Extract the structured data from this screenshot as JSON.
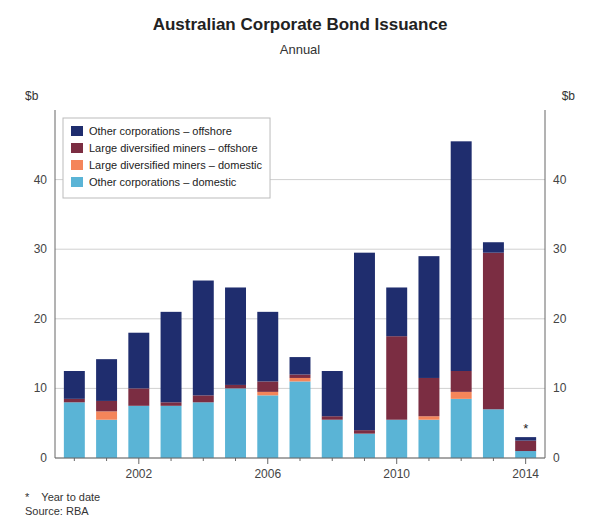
{
  "chart_data": {
    "type": "bar",
    "stacked": true,
    "title": "Australian Corporate Bond Issuance",
    "subtitle": "Annual",
    "ylabel": "$b",
    "y2label": "$b",
    "footnote": [
      "*    Year to date",
      "Source: RBA"
    ],
    "annotations": [
      {
        "text": "*",
        "category": "2014"
      }
    ],
    "categories": [
      null,
      null,
      "2002",
      null,
      null,
      null,
      "2006",
      null,
      null,
      null,
      "2010",
      null,
      null,
      null,
      "2014"
    ],
    "series": [
      {
        "name": "Other corporations – domestic",
        "color": "#5ab4d6",
        "values": [
          8.0,
          5.5,
          7.5,
          7.5,
          8.0,
          10.0,
          9.0,
          11.0,
          5.5,
          3.5,
          5.5,
          5.5,
          8.5,
          7.0,
          1.0
        ]
      },
      {
        "name": "Large diversified miners – domestic",
        "color": "#f4855a",
        "values": [
          0.0,
          1.2,
          0.0,
          0.0,
          0.0,
          0.0,
          0.5,
          0.5,
          0.0,
          0.0,
          0.0,
          0.5,
          1.0,
          0.0,
          0.0
        ]
      },
      {
        "name": "Large diversified miners – offshore",
        "color": "#7b2d42",
        "values": [
          0.5,
          1.5,
          2.5,
          0.5,
          1.0,
          0.5,
          1.5,
          0.5,
          0.5,
          0.5,
          12.0,
          5.5,
          3.0,
          22.5,
          1.5
        ]
      },
      {
        "name": "Other corporations – offshore",
        "color": "#1f2d6e",
        "values": [
          4.0,
          6.0,
          8.0,
          13.0,
          16.5,
          14.0,
          10.0,
          2.5,
          6.5,
          25.5,
          7.0,
          17.5,
          33.0,
          1.5,
          0.5
        ]
      }
    ],
    "ylim": [
      0,
      50
    ],
    "yticks": [
      0,
      10,
      20,
      30,
      40
    ],
    "y2lim": [
      0,
      50
    ],
    "y2ticks": [
      0,
      10,
      20,
      30,
      40
    ],
    "grid": true,
    "legend": "upper left"
  }
}
